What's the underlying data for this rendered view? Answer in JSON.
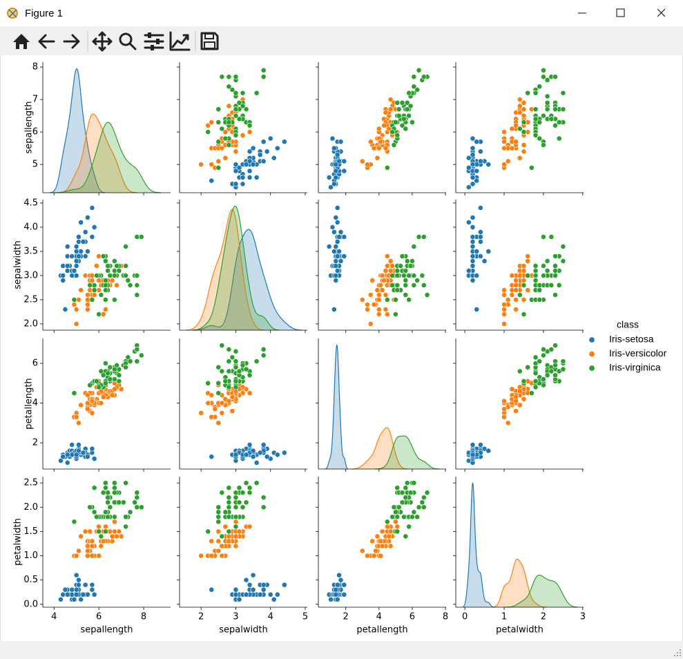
{
  "window": {
    "title": "Figure 1"
  },
  "chart_data": {
    "type": "pairplot",
    "legend_title": "class",
    "axes": [
      {
        "label": "sepallength",
        "xlim": [
          3.5,
          9.2
        ],
        "xticks": [
          4,
          6,
          8
        ],
        "ylim": [
          4.13,
          8.15
        ],
        "yticks": [
          5,
          6,
          7,
          8
        ]
      },
      {
        "label": "sepalwidth",
        "xlim": [
          1.38,
          5.06
        ],
        "xticks": [
          2,
          3,
          4,
          5
        ],
        "ylim": [
          1.87,
          4.57
        ],
        "yticks": [
          {
            "value": 2,
            "label": "2.0"
          },
          {
            "value": 2.5,
            "label": "2.5"
          },
          {
            "value": 3,
            "label": "3.0"
          },
          {
            "value": 3.5,
            "label": "3.5"
          },
          {
            "value": 4,
            "label": "4.0"
          },
          {
            "value": 4.5,
            "label": "4.5"
          }
        ]
      },
      {
        "label": "petallength",
        "xlim": [
          0.35,
          8.04
        ],
        "xticks": [
          2,
          4,
          6,
          8
        ],
        "ylim": [
          0.68,
          7.25
        ],
        "yticks": [
          2,
          4,
          6
        ]
      },
      {
        "label": "petalwidth",
        "xlim": [
          -0.23,
          3.02
        ],
        "xticks": [
          0,
          1,
          2,
          3
        ],
        "ylim": [
          -0.06,
          2.63
        ],
        "yticks": [
          {
            "value": 0,
            "label": "0.0"
          },
          {
            "value": 0.5,
            "label": "0.5"
          },
          {
            "value": 1,
            "label": "1.0"
          },
          {
            "value": 1.5,
            "label": "1.5"
          },
          {
            "value": 2,
            "label": "2.0"
          },
          {
            "value": 2.5,
            "label": "2.5"
          }
        ]
      }
    ],
    "series": [
      {
        "name": "Iris-setosa",
        "color": "#1f77b4",
        "values": [
          [
            5.1,
            4.9,
            4.7,
            4.6,
            5.0,
            5.4,
            4.6,
            5.0,
            4.4,
            4.9,
            5.4,
            4.8,
            4.8,
            4.3,
            5.8,
            5.7,
            5.4,
            5.1,
            5.7,
            5.1,
            5.4,
            5.1,
            4.6,
            5.1,
            4.8,
            5.0,
            5.0,
            5.2,
            5.2,
            4.7,
            4.8,
            5.4,
            5.2,
            5.5,
            4.9,
            5.0,
            5.5,
            4.9,
            4.4,
            5.1,
            5.0,
            4.5,
            4.4,
            5.0,
            5.1,
            4.8,
            5.1,
            4.6,
            5.3,
            5.0
          ],
          [
            3.5,
            3.0,
            3.2,
            3.1,
            3.6,
            3.9,
            3.4,
            3.4,
            2.9,
            3.1,
            3.7,
            3.4,
            3.0,
            3.0,
            4.0,
            4.4,
            3.9,
            3.5,
            3.8,
            3.8,
            3.4,
            3.7,
            3.6,
            3.3,
            3.4,
            3.0,
            3.4,
            3.5,
            3.4,
            3.2,
            3.1,
            3.4,
            4.1,
            4.2,
            3.1,
            3.2,
            3.5,
            3.1,
            3.0,
            3.4,
            3.5,
            2.3,
            3.2,
            3.5,
            3.8,
            3.0,
            3.8,
            3.2,
            3.7,
            3.3
          ],
          [
            1.4,
            1.4,
            1.3,
            1.5,
            1.4,
            1.7,
            1.4,
            1.5,
            1.4,
            1.5,
            1.5,
            1.6,
            1.4,
            1.1,
            1.2,
            1.5,
            1.3,
            1.4,
            1.7,
            1.5,
            1.7,
            1.5,
            1.0,
            1.7,
            1.9,
            1.6,
            1.6,
            1.5,
            1.4,
            1.6,
            1.6,
            1.5,
            1.5,
            1.4,
            1.5,
            1.2,
            1.3,
            1.5,
            1.3,
            1.5,
            1.3,
            1.3,
            1.3,
            1.6,
            1.9,
            1.4,
            1.6,
            1.4,
            1.5,
            1.4
          ],
          [
            0.2,
            0.2,
            0.2,
            0.2,
            0.2,
            0.4,
            0.3,
            0.2,
            0.2,
            0.1,
            0.2,
            0.2,
            0.1,
            0.1,
            0.2,
            0.4,
            0.4,
            0.3,
            0.3,
            0.3,
            0.2,
            0.4,
            0.2,
            0.5,
            0.2,
            0.2,
            0.4,
            0.2,
            0.2,
            0.2,
            0.2,
            0.4,
            0.1,
            0.2,
            0.1,
            0.2,
            0.2,
            0.1,
            0.2,
            0.2,
            0.3,
            0.3,
            0.2,
            0.6,
            0.4,
            0.3,
            0.2,
            0.2,
            0.2,
            0.2
          ]
        ]
      },
      {
        "name": "Iris-versicolor",
        "color": "#ff7f0e",
        "values": [
          [
            7.0,
            6.4,
            6.9,
            5.5,
            6.5,
            5.7,
            6.3,
            4.9,
            6.6,
            5.2,
            5.0,
            5.9,
            6.0,
            6.1,
            5.6,
            6.7,
            5.6,
            5.8,
            6.2,
            5.6,
            5.9,
            6.1,
            6.3,
            6.1,
            6.4,
            6.6,
            6.8,
            6.7,
            6.0,
            5.7,
            5.5,
            5.5,
            5.8,
            6.0,
            5.4,
            6.0,
            6.7,
            6.3,
            5.6,
            5.5,
            5.5,
            6.1,
            5.8,
            5.0,
            5.6,
            5.7,
            5.7,
            6.2,
            5.1,
            5.7
          ],
          [
            3.2,
            3.2,
            3.1,
            2.3,
            2.8,
            2.8,
            3.3,
            2.4,
            2.9,
            2.7,
            2.0,
            3.0,
            2.2,
            2.9,
            2.9,
            3.1,
            3.0,
            2.7,
            2.2,
            2.5,
            3.2,
            2.8,
            2.5,
            2.8,
            2.9,
            3.0,
            2.8,
            3.0,
            2.9,
            2.6,
            2.4,
            2.4,
            2.7,
            2.7,
            3.0,
            3.4,
            3.1,
            2.3,
            3.0,
            2.5,
            2.6,
            3.0,
            2.6,
            2.3,
            2.7,
            3.0,
            2.9,
            2.9,
            2.5,
            2.8
          ],
          [
            4.7,
            4.5,
            4.9,
            4.0,
            4.6,
            4.5,
            4.7,
            3.3,
            4.6,
            3.9,
            3.5,
            4.2,
            4.0,
            4.7,
            3.6,
            4.4,
            4.5,
            4.1,
            4.5,
            3.9,
            4.8,
            4.0,
            4.9,
            4.7,
            4.3,
            4.4,
            4.8,
            5.0,
            4.5,
            3.5,
            3.8,
            3.7,
            3.9,
            5.1,
            4.5,
            4.5,
            4.7,
            4.4,
            4.1,
            4.0,
            4.4,
            4.6,
            4.0,
            3.3,
            4.2,
            4.2,
            4.2,
            4.3,
            3.0,
            4.1
          ],
          [
            1.4,
            1.5,
            1.5,
            1.3,
            1.5,
            1.3,
            1.6,
            1.0,
            1.3,
            1.4,
            1.0,
            1.5,
            1.0,
            1.4,
            1.3,
            1.4,
            1.5,
            1.0,
            1.5,
            1.1,
            1.8,
            1.3,
            1.5,
            1.2,
            1.3,
            1.4,
            1.4,
            1.7,
            1.5,
            1.0,
            1.1,
            1.0,
            1.2,
            1.6,
            1.5,
            1.6,
            1.5,
            1.3,
            1.3,
            1.3,
            1.2,
            1.4,
            1.2,
            1.0,
            1.3,
            1.2,
            1.3,
            1.3,
            1.1,
            1.3
          ]
        ]
      },
      {
        "name": "Iris-virginica",
        "color": "#2ca02c",
        "values": [
          [
            6.3,
            5.8,
            7.1,
            6.3,
            6.5,
            7.6,
            4.9,
            7.3,
            6.7,
            7.2,
            6.5,
            6.4,
            6.8,
            5.7,
            5.8,
            6.4,
            6.5,
            7.7,
            7.7,
            6.0,
            6.9,
            5.6,
            7.7,
            6.3,
            6.7,
            7.2,
            6.2,
            6.1,
            6.4,
            7.2,
            7.4,
            7.9,
            6.4,
            6.3,
            6.1,
            7.7,
            6.3,
            6.4,
            6.0,
            6.9,
            6.7,
            6.9,
            5.8,
            6.8,
            6.7,
            6.7,
            6.3,
            6.5,
            6.2,
            5.9
          ],
          [
            3.3,
            2.7,
            3.0,
            2.9,
            3.0,
            3.0,
            2.5,
            2.9,
            2.5,
            3.6,
            3.2,
            2.7,
            3.0,
            2.5,
            2.8,
            3.2,
            3.0,
            3.8,
            2.6,
            2.2,
            3.2,
            2.8,
            2.8,
            2.7,
            3.3,
            3.2,
            2.8,
            3.0,
            2.8,
            3.0,
            2.8,
            3.8,
            2.8,
            2.8,
            2.6,
            3.0,
            3.4,
            3.1,
            3.0,
            3.1,
            3.1,
            3.1,
            2.7,
            3.2,
            3.3,
            3.0,
            2.5,
            3.0,
            3.4,
            3.0
          ],
          [
            6.0,
            5.1,
            5.9,
            5.6,
            5.8,
            6.6,
            4.5,
            6.3,
            5.8,
            6.1,
            5.1,
            5.3,
            5.5,
            5.0,
            5.1,
            5.3,
            5.5,
            6.7,
            6.9,
            5.0,
            5.7,
            4.9,
            6.7,
            4.9,
            5.7,
            6.0,
            4.8,
            4.9,
            5.6,
            5.8,
            6.1,
            6.4,
            5.6,
            5.1,
            5.6,
            6.1,
            5.6,
            5.5,
            4.8,
            5.4,
            5.6,
            5.1,
            5.1,
            5.9,
            5.7,
            5.2,
            5.0,
            5.2,
            5.4,
            5.1
          ],
          [
            2.5,
            1.9,
            2.1,
            1.8,
            2.2,
            2.1,
            1.7,
            1.8,
            1.8,
            2.5,
            2.0,
            1.9,
            2.1,
            2.0,
            2.4,
            2.3,
            1.8,
            2.2,
            2.3,
            1.5,
            2.3,
            2.0,
            2.0,
            1.8,
            2.1,
            1.8,
            1.8,
            1.8,
            2.1,
            1.6,
            1.9,
            2.0,
            2.2,
            1.5,
            1.4,
            2.3,
            2.4,
            1.8,
            1.8,
            2.1,
            2.4,
            2.3,
            1.9,
            2.3,
            2.5,
            2.3,
            1.9,
            2.0,
            2.3,
            1.8
          ]
        ]
      }
    ]
  }
}
